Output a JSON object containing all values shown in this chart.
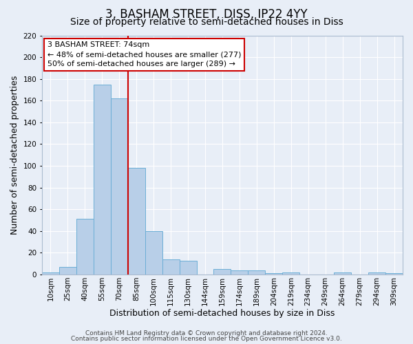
{
  "title": "3, BASHAM STREET, DISS, IP22 4YY",
  "subtitle": "Size of property relative to semi-detached houses in Diss",
  "xlabel": "Distribution of semi-detached houses by size in Diss",
  "ylabel": "Number of semi-detached properties",
  "bar_labels": [
    "10sqm",
    "25sqm",
    "40sqm",
    "55sqm",
    "70sqm",
    "85sqm",
    "100sqm",
    "115sqm",
    "130sqm",
    "144sqm",
    "159sqm",
    "174sqm",
    "189sqm",
    "204sqm",
    "219sqm",
    "234sqm",
    "249sqm",
    "264sqm",
    "279sqm",
    "294sqm",
    "309sqm"
  ],
  "bar_values": [
    2,
    7,
    51,
    175,
    162,
    98,
    40,
    14,
    13,
    0,
    5,
    4,
    4,
    1,
    2,
    0,
    0,
    2,
    0,
    2,
    1
  ],
  "ylim": [
    0,
    220
  ],
  "yticks": [
    0,
    20,
    40,
    60,
    80,
    100,
    120,
    140,
    160,
    180,
    200,
    220
  ],
  "bar_color": "#b8cfe8",
  "bar_edge_color": "#6baed6",
  "red_line_x": 4.5,
  "annotation_title": "3 BASHAM STREET: 74sqm",
  "annotation_line1": "← 48% of semi-detached houses are smaller (277)",
  "annotation_line2": "50% of semi-detached houses are larger (289) →",
  "annotation_box_color": "#ffffff",
  "annotation_box_edge": "#cc0000",
  "red_line_color": "#cc0000",
  "footer1": "Contains HM Land Registry data © Crown copyright and database right 2024.",
  "footer2": "Contains public sector information licensed under the Open Government Licence v3.0.",
  "bg_color": "#e8eef7",
  "grid_color": "#ffffff",
  "title_fontsize": 12,
  "subtitle_fontsize": 10,
  "axis_label_fontsize": 9,
  "tick_fontsize": 7.5,
  "annotation_fontsize": 8,
  "footer_fontsize": 6.5
}
